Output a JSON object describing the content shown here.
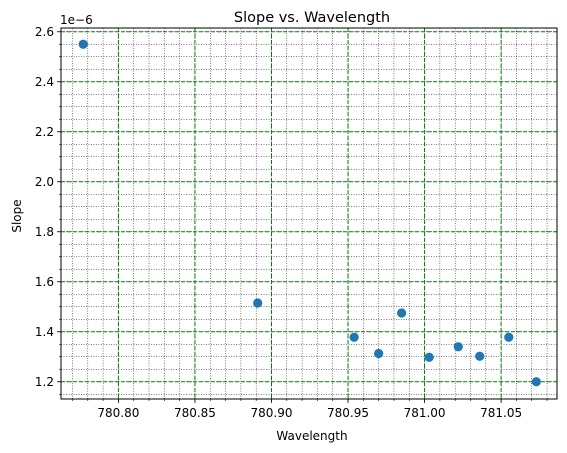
{
  "chart_data": {
    "type": "scatter",
    "title": "Slope vs. Wavelength",
    "xlabel": "Wavelength",
    "ylabel": "Slope",
    "y_offset_label": "1e−6",
    "xlim": [
      780.7625,
      781.0865
    ],
    "ylim": [
      1.131e-06,
      2.615e-06
    ],
    "x_ticks": [
      780.8,
      780.85,
      780.9,
      780.95,
      781.0,
      781.05
    ],
    "x_tick_labels": [
      "780.80",
      "780.85",
      "780.90",
      "780.95",
      "781.00",
      "781.05"
    ],
    "y_ticks": [
      1.2e-06,
      1.4e-06,
      1.6e-06,
      1.8e-06,
      2e-06,
      2.2e-06,
      2.4e-06,
      2.6e-06
    ],
    "y_tick_labels": [
      "1.2",
      "1.4",
      "1.6",
      "1.8",
      "2.0",
      "2.2",
      "2.4",
      "2.6"
    ],
    "grid": {
      "major": true,
      "minor": true,
      "major_color": "#008000",
      "minor_color": "#000000"
    },
    "marker_color": "#1f77b4",
    "x": [
      780.777,
      780.891,
      780.954,
      780.97,
      780.985,
      781.003,
      781.022,
      781.036,
      781.055,
      781.073
    ],
    "y": [
      2.55e-06,
      1.515e-06,
      1.378e-06,
      1.313e-06,
      1.475e-06,
      1.298e-06,
      1.34e-06,
      1.302e-06,
      1.378e-06,
      1.2e-06
    ]
  }
}
